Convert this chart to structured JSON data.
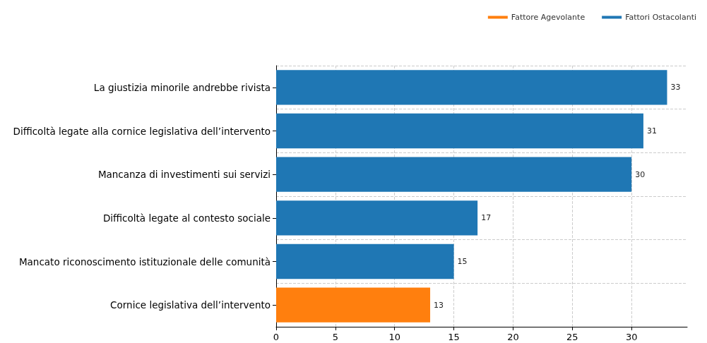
{
  "chart_data": {
    "type": "bar",
    "orientation": "horizontal",
    "categories": [
      "La giustizia minorile andrebbe rivista",
      "Difficoltà legate alla cornice legislativa dell’intervento",
      "Mancanza di investimenti sui servizi",
      "Difficoltà legate al contesto sociale",
      "Mancato riconoscimento istituzionale delle comunità",
      "Cornice legislativa dell’intervento"
    ],
    "series": [
      {
        "name": "Fattore Agevolante",
        "color": "#ff7f0e",
        "values": [
          null,
          null,
          null,
          null,
          null,
          13
        ]
      },
      {
        "name": "Fattori Ostacolanti",
        "color": "#1f77b4",
        "values": [
          33,
          31,
          30,
          17,
          15,
          null
        ]
      }
    ],
    "xlim": [
      0,
      34.7
    ],
    "xticks": [
      0,
      5,
      10,
      15,
      20,
      25,
      30
    ],
    "grid": true,
    "legend": "top right",
    "data_labels": true
  }
}
